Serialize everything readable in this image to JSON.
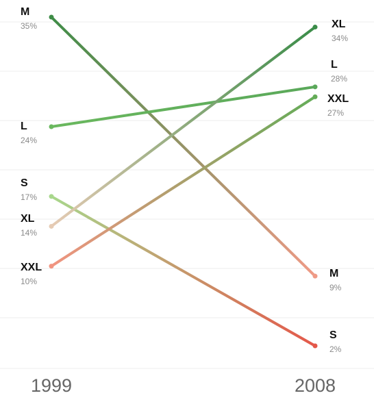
{
  "chart_data": {
    "type": "line",
    "x": [
      "1999",
      "2008"
    ],
    "ylim": [
      0,
      36
    ],
    "grid": true,
    "series": [
      {
        "name": "M",
        "values": [
          35,
          9
        ],
        "labels": [
          "35%",
          "9%"
        ],
        "color_start": "#3e8c47",
        "color_end": "#ef9a86"
      },
      {
        "name": "L",
        "values": [
          24,
          28
        ],
        "labels": [
          "24%",
          "28%"
        ],
        "color_start": "#6ab85e",
        "color_end": "#5aa85a"
      },
      {
        "name": "S",
        "values": [
          17,
          2
        ],
        "labels": [
          "17%",
          "2%"
        ],
        "color_start": "#a8d78c",
        "color_end": "#e4584a"
      },
      {
        "name": "XL",
        "values": [
          14,
          34
        ],
        "labels": [
          "14%",
          "34%"
        ],
        "color_start": "#e6cbb4",
        "color_end": "#3a8c48"
      },
      {
        "name": "XXL",
        "values": [
          10,
          27
        ],
        "labels": [
          "10%",
          "27%"
        ],
        "color_start": "#f19480",
        "color_end": "#64ac58"
      }
    ]
  }
}
